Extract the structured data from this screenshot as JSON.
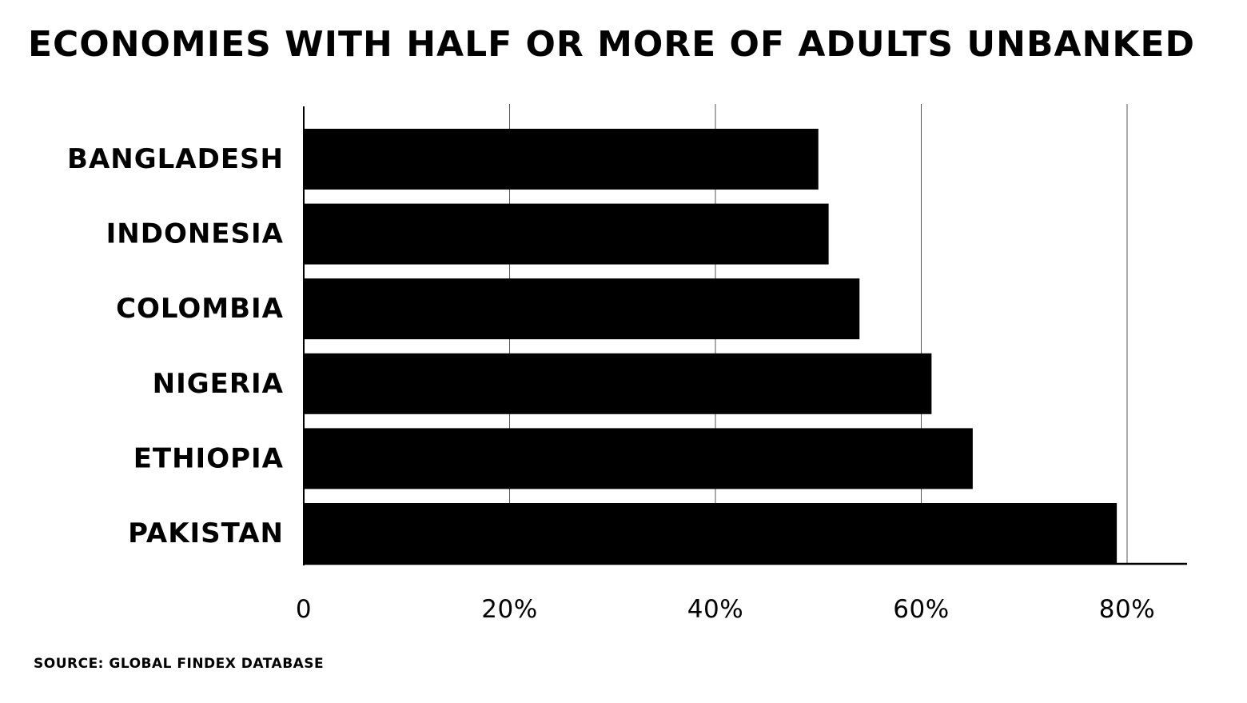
{
  "chart_data": {
    "type": "bar",
    "orientation": "horizontal",
    "title": "ECONOMIES WITH HALF OR MORE OF ADULTS UNBANKED",
    "categories": [
      "BANGLADESH",
      "INDONESIA",
      "COLOMBIA",
      "NIGERIA",
      "ETHIOPIA",
      "PAKISTAN"
    ],
    "values": [
      50,
      51,
      54,
      61,
      65,
      79
    ],
    "value_unit": "%",
    "xlim": [
      0,
      80
    ],
    "x_ticks": [
      0,
      20,
      40,
      60,
      80
    ],
    "x_tick_labels": [
      "0",
      "20%",
      "40%",
      "60%",
      "80%"
    ],
    "xlabel": "",
    "ylabel": "",
    "grid": "vertical",
    "legend": "none",
    "bar_color": "#000000"
  },
  "source": "SOURCE: GLOBAL FINDEX DATABASE"
}
